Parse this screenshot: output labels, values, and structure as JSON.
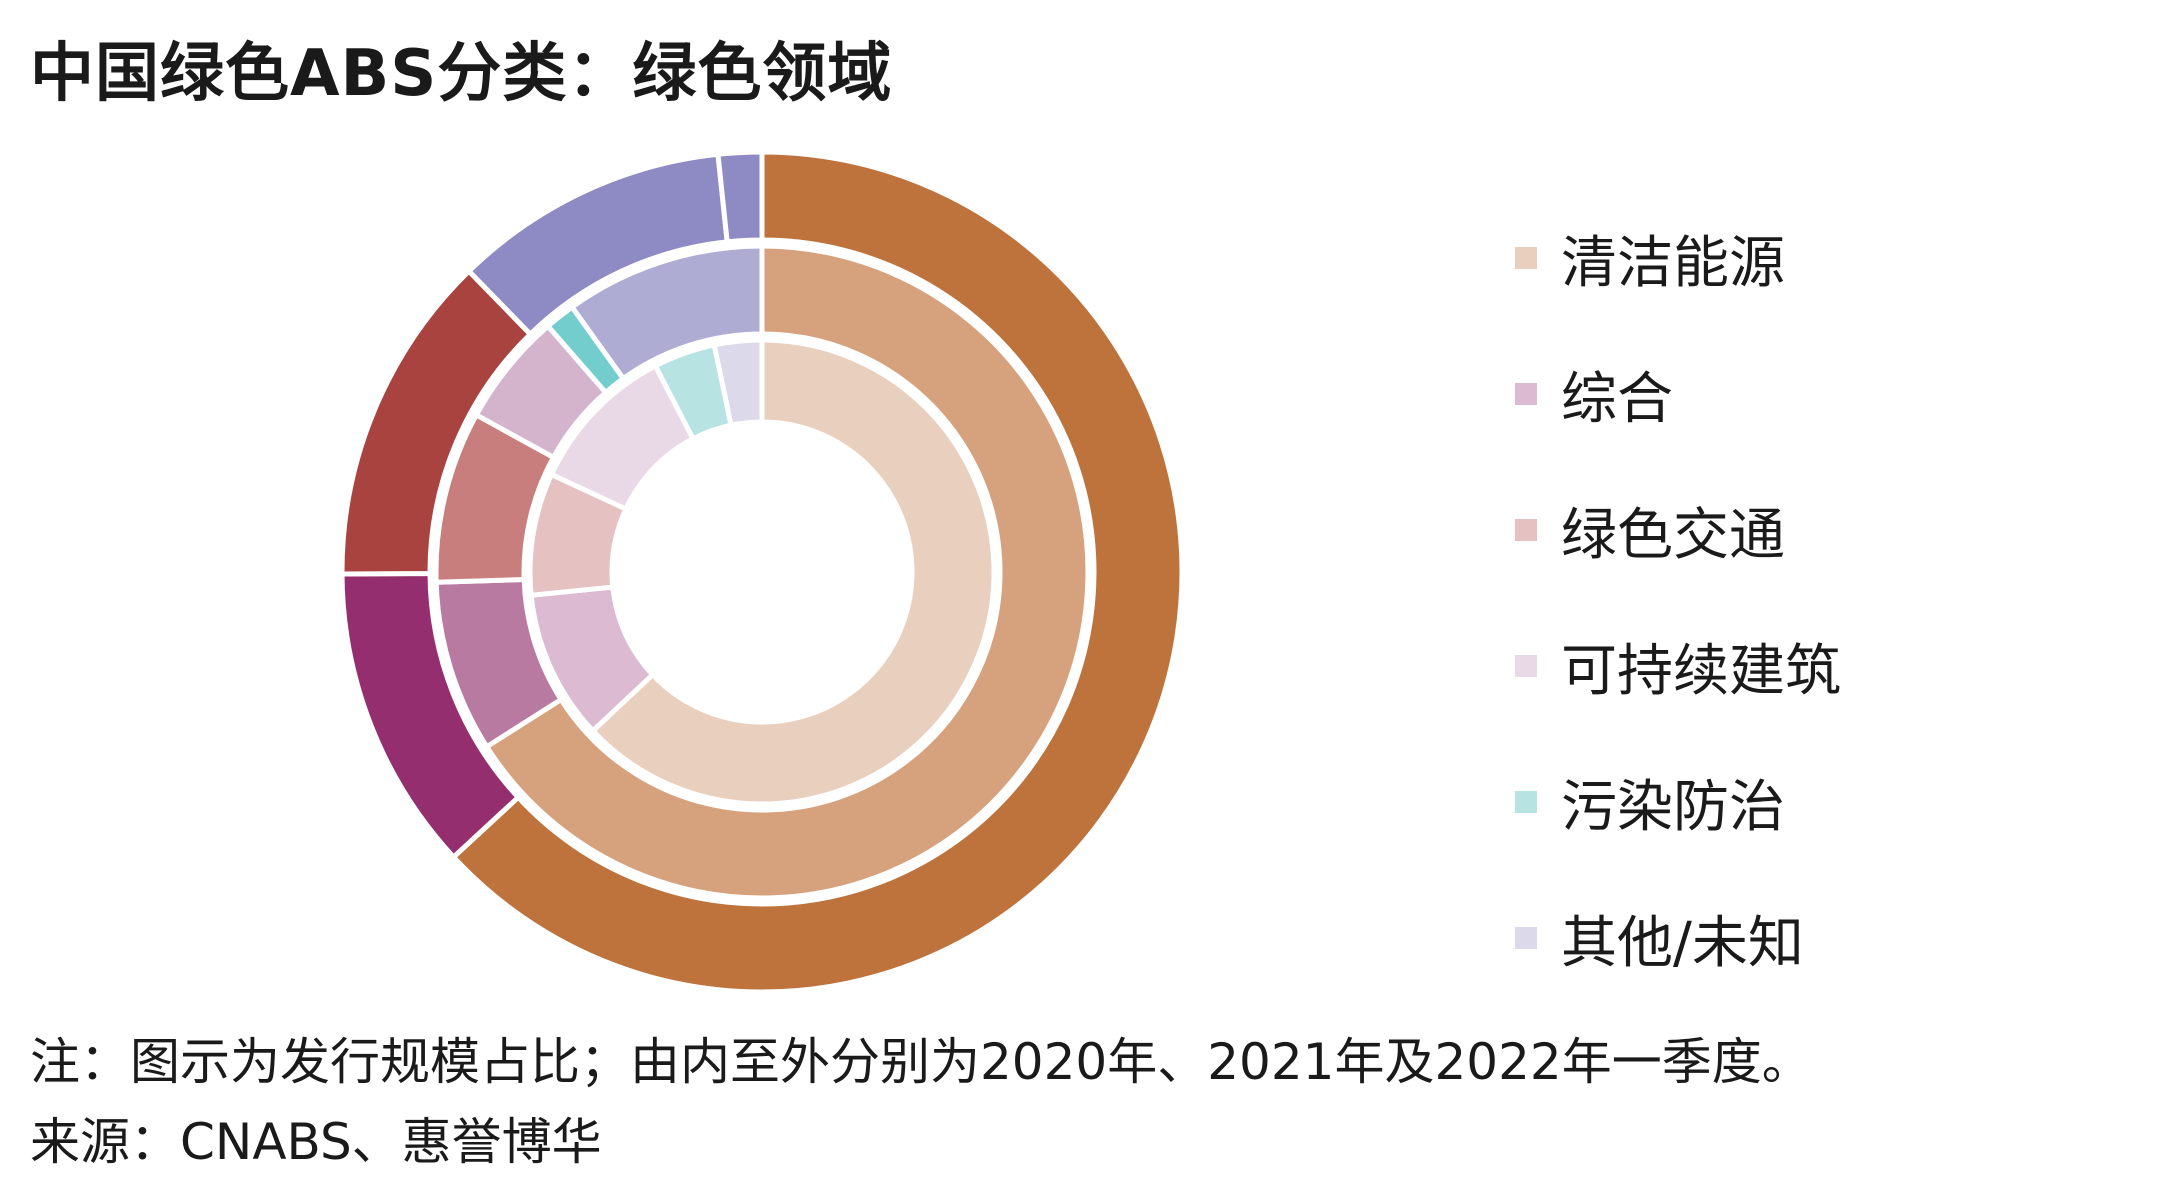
{
  "title": "中国绿色ABS分类：绿色领域",
  "note": "注：图示为发行规模占比；由内至外分别为2020年、2021年及2022年一季度。",
  "source": "来源：CNABS、惠誉博华",
  "chart_data": {
    "type": "pie",
    "subtype": "nested-donut",
    "title": "中国绿色ABS分类：绿色领域",
    "legend_position": "right",
    "categories": [
      "清洁能源",
      "综合",
      "绿色交通",
      "可持续建筑",
      "污染防治",
      "其他/未知"
    ],
    "series": [
      {
        "name": "2020年",
        "values": [
          63.0,
          10.4,
          8.5,
          10.5,
          4.3,
          3.3
        ],
        "colors": [
          "#E9CFBE",
          "#DBBAD2",
          "#E5C1C1",
          "#E9D9E6",
          "#B7E3E2",
          "#DBD9EA"
        ]
      },
      {
        "name": "2021年",
        "values": [
          66.0,
          8.5,
          8.5,
          5.6,
          1.5,
          9.9
        ],
        "colors": [
          "#D6A27E",
          "#B97AA1",
          "#C87E7C",
          "#D4B3CD",
          "#72CDCC",
          "#AFACD4"
        ]
      },
      {
        "name": "2022年一季度",
        "values": [
          64.2,
          12.0,
          13.0,
          0.0,
          0.0,
          10.8
        ],
        "colors": [
          "#BE733C",
          "#952E6E",
          "#A8433F",
          "#C08BB3",
          "#5EC4C3",
          "#8E8AC4"
        ],
        "extra_slices": [
          {
            "value": 1.7,
            "color": "#8E8AC4"
          }
        ]
      }
    ],
    "legend_colors": [
      "#E9CFBE",
      "#DBBAD2",
      "#E5C1C1",
      "#E9D9E6",
      "#B7E3E2",
      "#DBD9EA"
    ]
  }
}
